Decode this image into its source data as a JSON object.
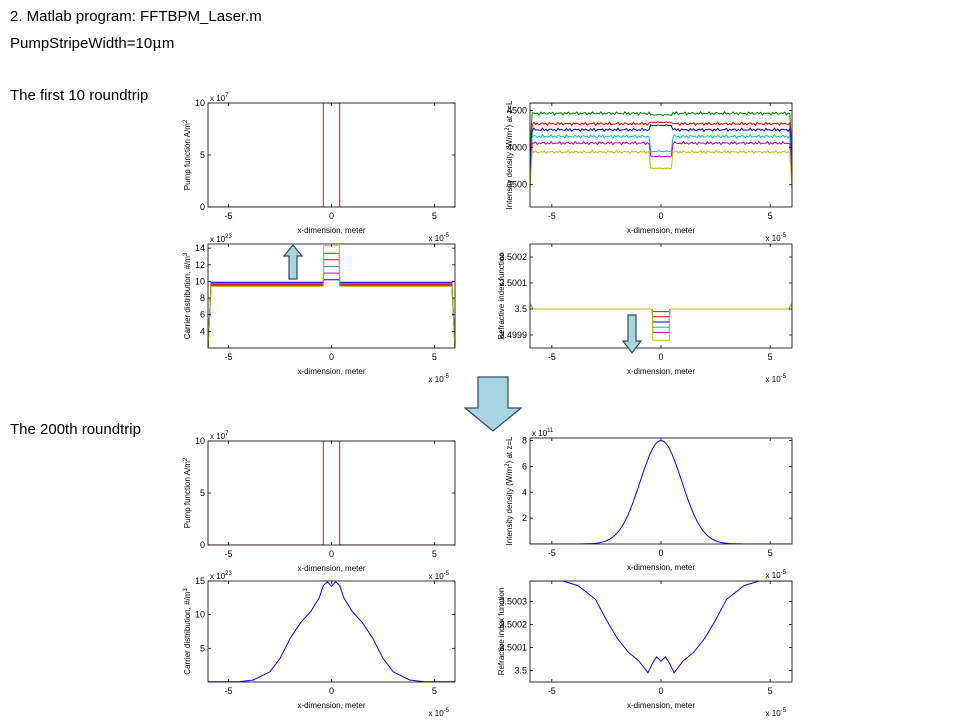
{
  "header": {
    "line1": "2. Matlab program: FFTBPM_Laser.m",
    "line2_prefix": "PumpStripeWidth=10",
    "line2_greek": "μ",
    "line2_suffix": "m"
  },
  "sections": [
    {
      "label": "The first 10 roundtrip"
    },
    {
      "label": "The 200th roundtrip"
    }
  ],
  "colors": {
    "blue": "#0000ff",
    "green": "#008000",
    "red": "#ff0000",
    "cyan": "#00bfbf",
    "magenta": "#bf00bf",
    "olive": "#bfbf00",
    "arrow_fill": "#a9d4e2",
    "arrow_stroke": "#2e4a57"
  },
  "icons": {
    "up_arrow": "up-arrow-icon",
    "down_arrow": "down-arrow-icon",
    "big_down_arrow": "big-down-arrow-icon"
  },
  "chart_data": [
    {
      "id": "pump-first",
      "type": "line",
      "ylabel": "Pump function A/m",
      "ylabel_sup": "2",
      "xlabel": "x-dimension, meter",
      "x_exponent": "x 10",
      "x_exponent_power": "-5",
      "y_exponent": "x 10",
      "y_exponent_power": "7",
      "xlim": [
        -6,
        6
      ],
      "ylim": [
        0,
        10
      ],
      "xticks": [
        -5,
        0,
        5
      ],
      "yticks": [
        0,
        5,
        10
      ],
      "series": [
        {
          "color": "red",
          "x": [
            -6,
            -0.4,
            -0.4,
            0.4,
            0.4,
            6
          ],
          "y": [
            0,
            0,
            10,
            10,
            0,
            0
          ]
        }
      ]
    },
    {
      "id": "intensity-first",
      "type": "line",
      "ylabel": "Intensity density (W/m",
      "ylabel_sup": "2",
      "ylabel_tail": ") at z=L",
      "xlabel": "x-dimension, meter",
      "x_exponent": "x 10",
      "x_exponent_power": "-5",
      "xlim": [
        -6,
        6
      ],
      "ylim": [
        3200,
        4600
      ],
      "xticks": [
        -5,
        0,
        5
      ],
      "yticks": [
        3500,
        4000,
        4500
      ],
      "series": [
        {
          "color": "green",
          "level": 4460,
          "dip": 4440
        },
        {
          "color": "red",
          "level": 4320,
          "dip": 4340
        },
        {
          "color": "blue",
          "level": 4240,
          "dip": 4300
        },
        {
          "color": "cyan",
          "level": 4150,
          "dip": 3950
        },
        {
          "color": "magenta",
          "level": 4060,
          "dip": 3880
        },
        {
          "color": "olive",
          "level": 3940,
          "dip": 3720
        },
        {
          "color": "blue",
          "level": 4600,
          "dip": 4600
        }
      ]
    },
    {
      "id": "carrier-first",
      "type": "line",
      "ylabel": "Carrier distribution, #/m",
      "ylabel_sup": "3",
      "xlabel": "x-dimension, meter",
      "x_exponent": "x 10",
      "x_exponent_power": "-5",
      "y_exponent": "x 10",
      "y_exponent_power": "23",
      "xlim": [
        -6,
        6
      ],
      "ylim": [
        2,
        14.5
      ],
      "xticks": [
        -5,
        0,
        5
      ],
      "yticks": [
        4,
        6,
        8,
        10,
        12,
        14
      ],
      "series": [
        {
          "color": "blue",
          "base": 9.9,
          "stripe": 10.2
        },
        {
          "color": "magenta",
          "base": 9.8,
          "stripe": 11.0
        },
        {
          "color": "cyan",
          "base": 9.7,
          "stripe": 11.8
        },
        {
          "color": "red",
          "base": 9.6,
          "stripe": 12.6
        },
        {
          "color": "green",
          "base": 9.5,
          "stripe": 13.4
        },
        {
          "color": "olive",
          "base": 9.4,
          "stripe": 14.3
        }
      ]
    },
    {
      "id": "index-first",
      "type": "line",
      "ylabel": "Refractive index function",
      "xlabel": "x-dimension, meter",
      "x_exponent": "x 10",
      "x_exponent_power": "-5",
      "xlim": [
        -6,
        6
      ],
      "ylim": [
        3.49985,
        3.50025
      ],
      "xticks": [
        -5,
        0,
        5
      ],
      "yticks": [
        3.4999,
        3.5,
        3.5001,
        3.5002
      ],
      "ytick_labels": [
        "3.4999",
        "3.5",
        "3.5001",
        "3.5002"
      ],
      "series": [
        {
          "color": "green",
          "base": 3.5,
          "stripe": 3.49999
        },
        {
          "color": "red",
          "base": 3.5,
          "stripe": 3.49997
        },
        {
          "color": "blue",
          "base": 3.5,
          "stripe": 3.49995
        },
        {
          "color": "cyan",
          "base": 3.5,
          "stripe": 3.49993
        },
        {
          "color": "magenta",
          "base": 3.5,
          "stripe": 3.49991
        },
        {
          "color": "olive",
          "base": 3.5,
          "stripe": 3.49988
        }
      ]
    },
    {
      "id": "pump-200",
      "type": "line",
      "ylabel": "Pump function A/m",
      "ylabel_sup": "2",
      "xlabel": "x-dimension, meter",
      "x_exponent": "x 10",
      "x_exponent_power": "-5",
      "y_exponent": "x 10",
      "y_exponent_power": "7",
      "xlim": [
        -6,
        6
      ],
      "ylim": [
        0,
        10
      ],
      "xticks": [
        -5,
        0,
        5
      ],
      "yticks": [
        0,
        5,
        10
      ],
      "series": [
        {
          "color": "red",
          "x": [
            -6,
            -0.4,
            -0.4,
            0.4,
            0.4,
            6
          ],
          "y": [
            0,
            0,
            10,
            10,
            0,
            0
          ]
        }
      ]
    },
    {
      "id": "intensity-200",
      "type": "line",
      "ylabel": "Intensity density (W/m",
      "ylabel_sup": "2",
      "ylabel_tail": ") at z=L",
      "xlabel": "x-dimension, meter",
      "x_exponent": "x 10",
      "x_exponent_power": "-5",
      "y_exponent": "x 10",
      "y_exponent_power": "11",
      "xlim": [
        -6,
        6
      ],
      "ylim": [
        0,
        8.2
      ],
      "xticks": [
        -5,
        0,
        5
      ],
      "yticks": [
        2,
        4,
        6,
        8
      ],
      "series": [
        {
          "color": "blue",
          "peak": 8.0,
          "sigma": 0.95
        }
      ]
    },
    {
      "id": "carrier-200",
      "type": "line",
      "ylabel": "Carrier distribution, #/m",
      "ylabel_sup": "3",
      "xlabel": "x-dimension, meter",
      "x_exponent": "x 10",
      "x_exponent_power": "-5",
      "y_exponent": "x 10",
      "y_exponent_power": "23",
      "xlim": [
        -6,
        6
      ],
      "ylim": [
        0,
        15
      ],
      "xticks": [
        -5,
        0,
        5
      ],
      "yticks": [
        5,
        10,
        15
      ],
      "series": [
        {
          "color": "blue",
          "x": [
            -6,
            -4.5,
            -3.8,
            -3,
            -2.5,
            -2,
            -1.5,
            -1,
            -0.6,
            -0.4,
            -0.2,
            0,
            0.2,
            0.4,
            0.6,
            1,
            1.5,
            2,
            2.5,
            3,
            3.8,
            4.5,
            6
          ],
          "y": [
            0.05,
            0.05,
            0.3,
            1.5,
            3.5,
            6.5,
            8.8,
            10.5,
            12.5,
            14.3,
            14.9,
            14.2,
            14.9,
            14.3,
            12.5,
            10.5,
            8.8,
            6.5,
            3.5,
            1.5,
            0.3,
            0.05,
            0.05
          ]
        }
      ]
    },
    {
      "id": "index-200",
      "type": "line",
      "ylabel": "Refractive index function",
      "xlabel": "x-dimension, meter",
      "x_exponent": "x 10",
      "x_exponent_power": "-5",
      "xlim": [
        -6,
        6
      ],
      "ylim": [
        3.49995,
        3.50039
      ],
      "xticks": [
        -5,
        0,
        5
      ],
      "yticks": [
        3.5,
        3.5001,
        3.5002,
        3.5003
      ],
      "ytick_labels": [
        "3.5",
        "3.5001",
        "3.5002",
        "3.5003"
      ],
      "series": [
        {
          "color": "blue",
          "x": [
            -6,
            -4.5,
            -3.8,
            -3,
            -2.5,
            -2,
            -1.5,
            -1,
            -0.6,
            -0.4,
            -0.2,
            0,
            0.2,
            0.4,
            0.6,
            1,
            1.5,
            2,
            2.5,
            3,
            3.8,
            4.5,
            6
          ],
          "y": [
            3.50039,
            3.50039,
            3.50037,
            3.50031,
            3.50022,
            3.50014,
            3.50008,
            3.50004,
            3.49999,
            3.50003,
            3.50006,
            3.50004,
            3.50006,
            3.50003,
            3.49999,
            3.50004,
            3.50008,
            3.50014,
            3.50022,
            3.50031,
            3.50037,
            3.50039,
            3.50039
          ]
        }
      ]
    }
  ]
}
